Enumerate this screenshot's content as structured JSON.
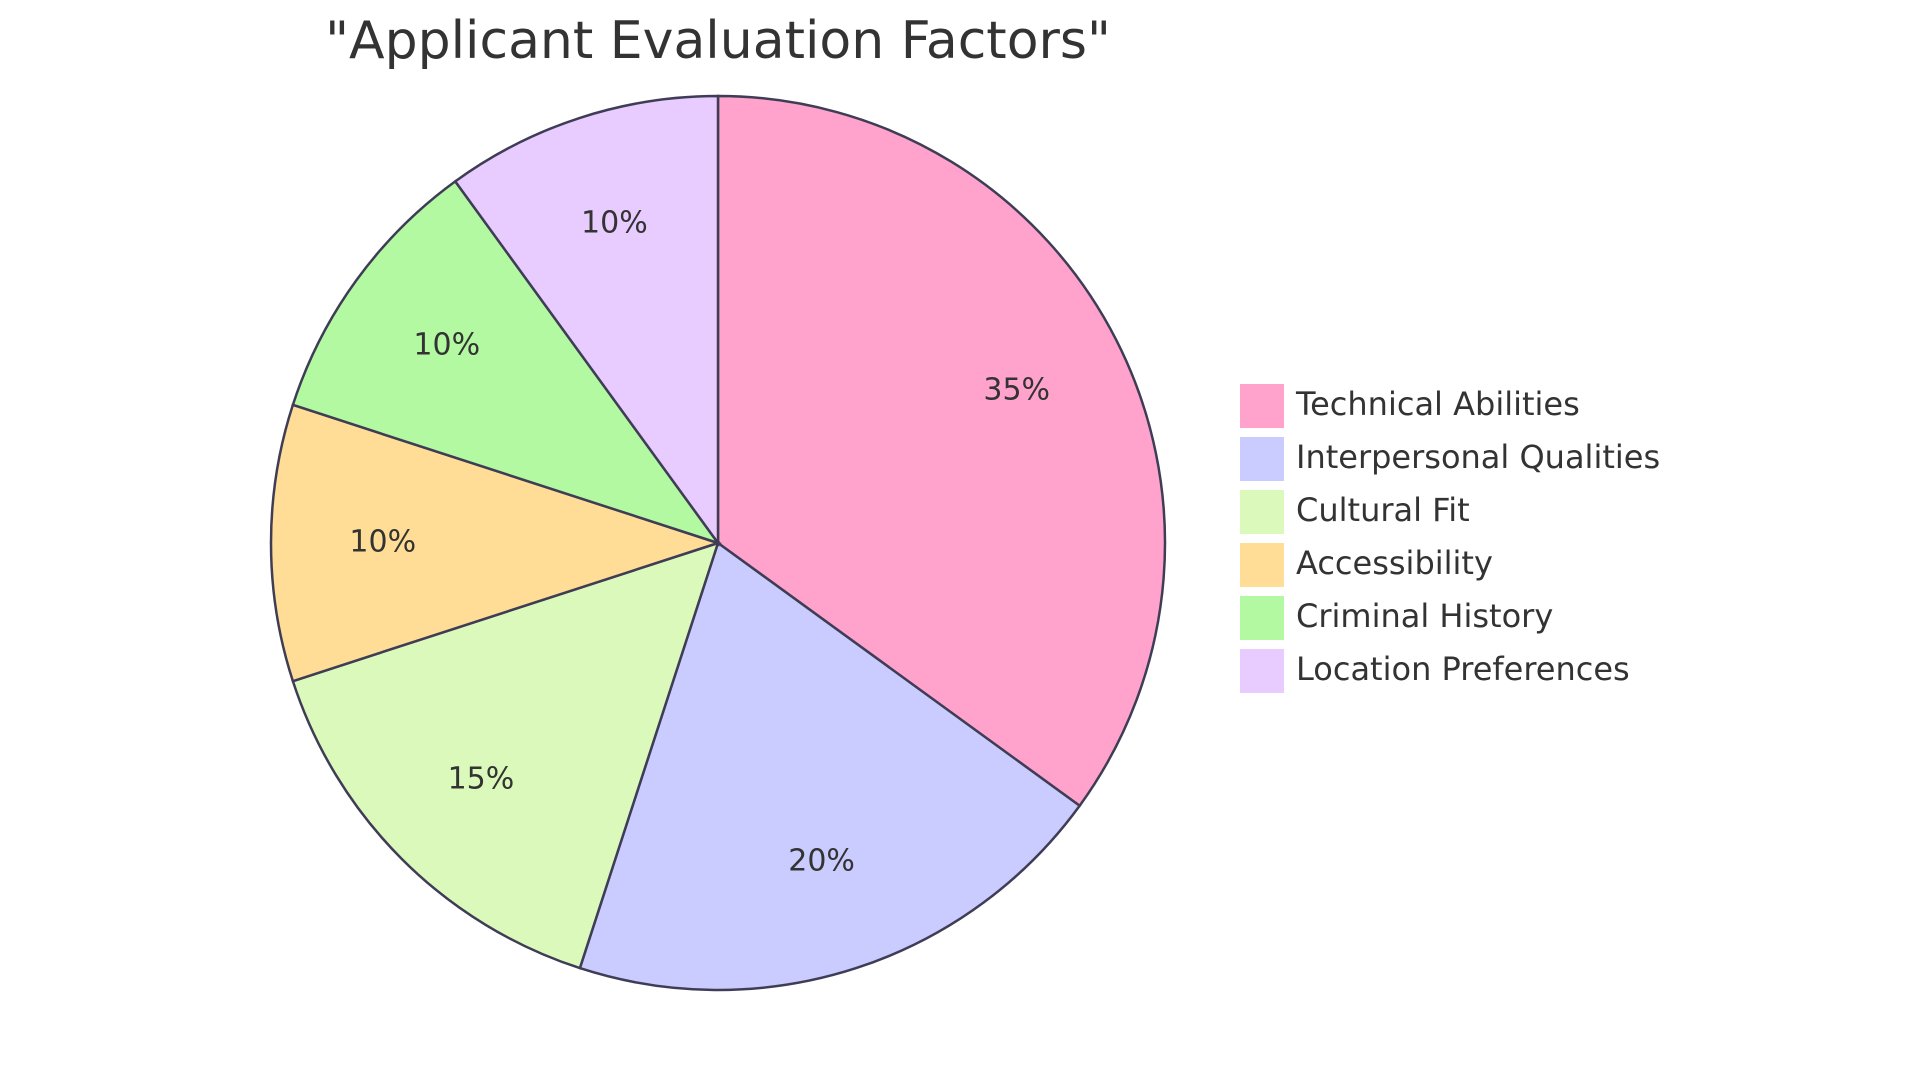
{
  "chart_data": {
    "type": "pie",
    "title": "\"Applicant Evaluation Factors\"",
    "slices": [
      {
        "label": "Technical Abilities",
        "value": 35,
        "display": "35%",
        "color": "#ffa3cd"
      },
      {
        "label": "Interpersonal Qualities",
        "value": 20,
        "display": "20%",
        "color": "#cacbff"
      },
      {
        "label": "Cultural Fit",
        "value": 15,
        "display": "15%",
        "color": "#dbf9bb"
      },
      {
        "label": "Accessibility",
        "value": 10,
        "display": "10%",
        "color": "#ffdd96"
      },
      {
        "label": "Criminal History",
        "value": 10,
        "display": "10%",
        "color": "#b3f9a1"
      },
      {
        "label": "Location Preferences",
        "value": 10,
        "display": "10%",
        "color": "#e8cbff"
      }
    ],
    "legend_position": "right",
    "stroke_color": "#3f3d56"
  }
}
